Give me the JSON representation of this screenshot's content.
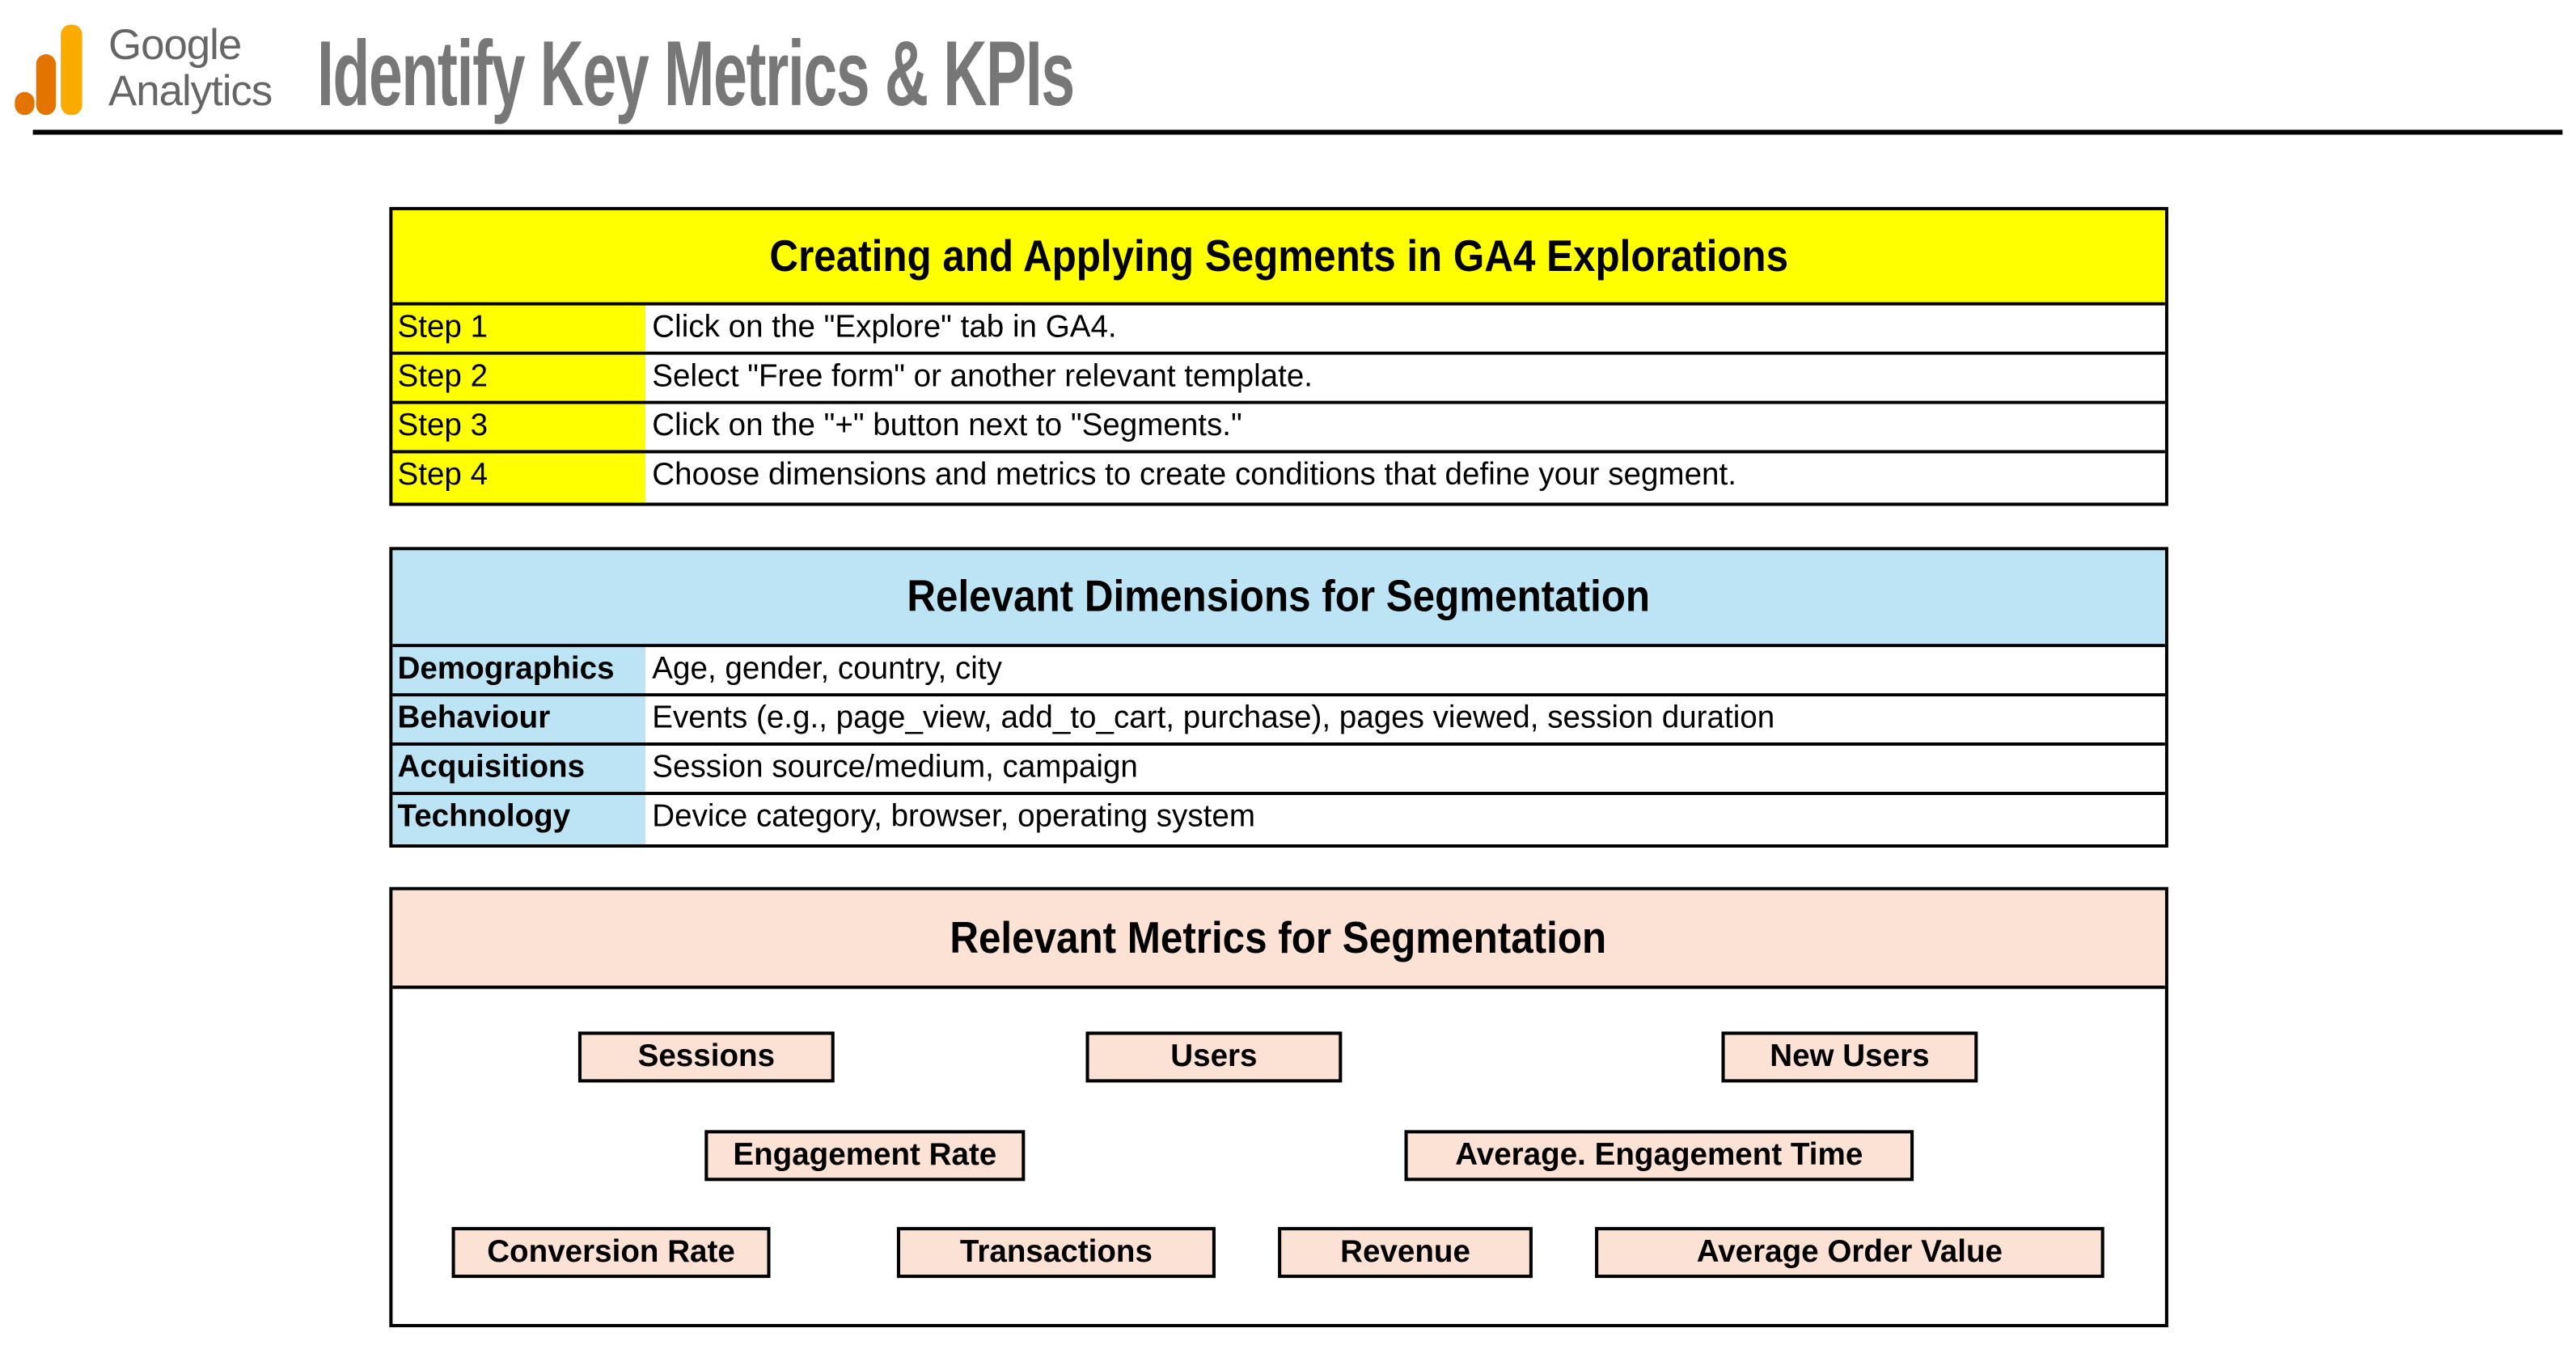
{
  "header": {
    "logo": {
      "line1": "Google",
      "line2": "Analytics",
      "colors": {
        "orange_dark": "#E37400",
        "orange_light": "#F9AB00"
      }
    },
    "title": "Identify Key Metrics & KPIs"
  },
  "colors": {
    "steps_fill": "#FFFF00",
    "dimensions_fill": "#BDE4F4",
    "metrics_fill": "#FBE2D5",
    "title_gray": "#777777"
  },
  "steps": {
    "title": "Creating and Applying Segments in GA4 Explorations",
    "rows": [
      {
        "label": "Step 1",
        "text": "Click on the \"Explore\" tab in GA4."
      },
      {
        "label": "Step 2",
        "text": "Select \"Free form\" or another relevant template."
      },
      {
        "label": "Step 3",
        "text": "Click on the \"+\" button next to \"Segments.\""
      },
      {
        "label": "Step 4",
        "text": "Choose dimensions and metrics to create conditions that define your segment."
      }
    ]
  },
  "dimensions": {
    "title": "Relevant Dimensions for Segmentation",
    "rows": [
      {
        "label": "Demographics",
        "text": "Age, gender, country, city"
      },
      {
        "label": "Behaviour",
        "text": "Events (e.g., page_view, add_to_cart, purchase), pages viewed, session duration"
      },
      {
        "label": "Acquisitions",
        "text": "Session source/medium, campaign"
      },
      {
        "label": "Technology",
        "text": "Device category, browser, operating system"
      }
    ]
  },
  "metrics": {
    "title": "Relevant Metrics for Segmentation",
    "items": [
      "Sessions",
      "Users",
      "New Users",
      "Engagement Rate",
      "Average. Engagement Time",
      "Conversion Rate",
      "Transactions",
      "Revenue",
      "Average Order Value"
    ]
  }
}
